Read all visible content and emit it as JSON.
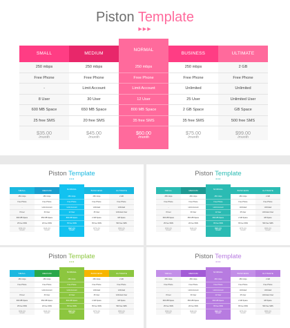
{
  "title_word1": "Piston",
  "title_word2": "Template",
  "dots_main": "▶▶▶",
  "dots_small": "●●●",
  "plans": [
    {
      "name": "SMALL",
      "rows": [
        "250 mbps",
        "Free Phone",
        "-",
        "8 User",
        "600 MB Space",
        "25 free SMS"
      ],
      "price": "$35.00",
      "period": "/month"
    },
    {
      "name": "MEDIUM",
      "rows": [
        "250 mbps",
        "Free Phone",
        "Limit Account",
        "30 User",
        "650 MB Space",
        "20 free SMS"
      ],
      "price": "$45.00",
      "period": "/month"
    },
    {
      "name": "NORMAL",
      "rows": [
        "250 mbps",
        "Free Phone",
        "Limit Account",
        "12 User",
        "800 MB Space",
        "35 free SMS"
      ],
      "price": "$60.00",
      "period": "/month"
    },
    {
      "name": "BUSINESS",
      "rows": [
        "250 mbps",
        "Free Phone",
        "Unlimited",
        "25 User",
        "2 GB Space",
        "35 free SMS"
      ],
      "price": "$75.00",
      "period": "/month"
    },
    {
      "name": "ULTIMATE",
      "rows": [
        "2 GB",
        "Free Phone",
        "Unlimited",
        "Unlimited User",
        "GB Space",
        "500 free SMS"
      ],
      "price": "$99.00",
      "period": "/month"
    }
  ],
  "themes": [
    {
      "accent": "#ff6a9c",
      "headers": [
        "#ff3d84",
        "#e8276a",
        "#ff6a9c",
        "#ff3d84",
        "#ff6a9c"
      ],
      "highlight": "#ff6a9c"
    },
    {
      "accent": "#1ab8e0",
      "headers": [
        "#1ab8e0",
        "#1a9fcf",
        "#12c2f0",
        "#1ab8e0",
        "#1ab8e0"
      ],
      "highlight": "#12c2f0"
    },
    {
      "accent": "#2bbbb3",
      "headers": [
        "#2bbbb3",
        "#1e9a93",
        "#2bbbb3",
        "#2bbbb3",
        "#2bbbb3"
      ],
      "highlight": "#2bbbb3"
    },
    {
      "accent": "#8cc63f",
      "headers": [
        "#1ab8e0",
        "#2aa84a",
        "#8cc63f",
        "#f7b500",
        "#8cc63f"
      ],
      "highlight": "#8cc63f"
    },
    {
      "accent": "#b77be0",
      "headers": [
        "#c38fe8",
        "#a35bd6",
        "#b77be0",
        "#c38fe8",
        "#b77be0"
      ],
      "highlight": "#b77be0"
    }
  ]
}
